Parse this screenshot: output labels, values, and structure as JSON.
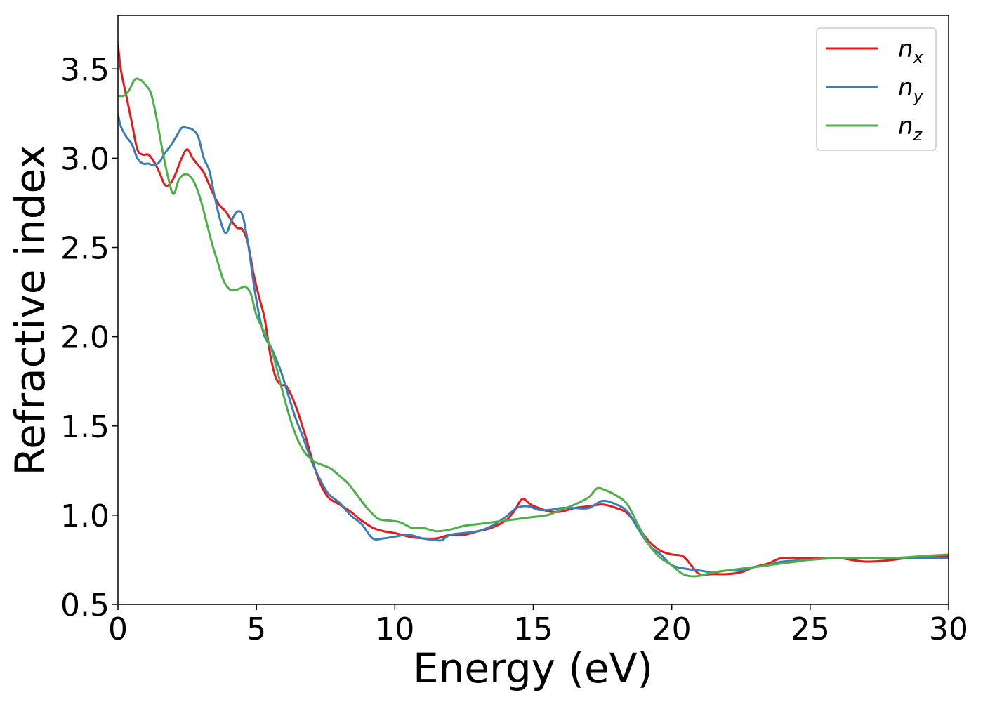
{
  "chart_data": {
    "type": "line",
    "xlabel": "Energy (eV)",
    "ylabel": "Refractive index",
    "xlim": [
      0,
      30
    ],
    "ylim": [
      0.5,
      3.8
    ],
    "xticks": [
      0,
      5,
      10,
      15,
      20,
      25,
      30
    ],
    "yticks": [
      0.5,
      1.0,
      1.5,
      2.0,
      2.5,
      3.0,
      3.5
    ],
    "xtick_labels": [
      "0",
      "5",
      "10",
      "15",
      "20",
      "25",
      "30"
    ],
    "ytick_labels": [
      "0.5",
      "1.0",
      "1.5",
      "2.0",
      "2.5",
      "3.0",
      "3.5"
    ],
    "grid": false,
    "legend_position": "top-right",
    "series": [
      {
        "name": "n_x",
        "legend_base": "n",
        "legend_sub": "x",
        "color": "#e41a1c",
        "x": [
          0,
          0.1,
          0.3,
          0.5,
          0.7,
          0.9,
          1.1,
          1.3,
          1.5,
          1.7,
          1.9,
          2.1,
          2.3,
          2.5,
          2.7,
          2.9,
          3.1,
          3.3,
          3.5,
          3.7,
          3.9,
          4.1,
          4.3,
          4.5,
          4.7,
          4.9,
          5.1,
          5.3,
          5.5,
          5.7,
          5.9,
          6.1,
          6.4,
          6.7,
          7.0,
          7.3,
          7.6,
          8.0,
          8.4,
          8.8,
          9.2,
          9.6,
          10.0,
          10.5,
          11.0,
          11.5,
          12.0,
          12.5,
          13.0,
          13.5,
          14.0,
          14.3,
          14.6,
          14.9,
          15.2,
          15.6,
          16.0,
          16.5,
          17.0,
          17.5,
          18.0,
          18.4,
          18.8,
          19.2,
          19.6,
          20.0,
          20.4,
          20.7,
          21.0,
          21.5,
          22.0,
          22.5,
          23.0,
          23.5,
          24.0,
          25.0,
          26.0,
          27.0,
          28.0,
          29.0,
          30.0
        ],
        "values": [
          3.64,
          3.5,
          3.35,
          3.2,
          3.05,
          3.02,
          3.02,
          2.98,
          2.92,
          2.85,
          2.86,
          2.92,
          3.0,
          3.05,
          3.0,
          2.96,
          2.92,
          2.85,
          2.78,
          2.73,
          2.7,
          2.65,
          2.61,
          2.6,
          2.52,
          2.35,
          2.22,
          2.1,
          1.9,
          1.77,
          1.73,
          1.72,
          1.62,
          1.48,
          1.32,
          1.18,
          1.1,
          1.06,
          1.02,
          0.97,
          0.93,
          0.91,
          0.9,
          0.88,
          0.87,
          0.87,
          0.89,
          0.89,
          0.91,
          0.93,
          0.97,
          1.02,
          1.09,
          1.06,
          1.04,
          1.02,
          1.02,
          1.04,
          1.05,
          1.06,
          1.04,
          1.01,
          0.93,
          0.85,
          0.8,
          0.78,
          0.77,
          0.72,
          0.67,
          0.67,
          0.67,
          0.68,
          0.71,
          0.73,
          0.76,
          0.76,
          0.76,
          0.74,
          0.75,
          0.77,
          0.77
        ]
      },
      {
        "name": "n_y",
        "legend_base": "n",
        "legend_sub": "y",
        "color": "#377eb8",
        "x": [
          0,
          0.1,
          0.3,
          0.5,
          0.7,
          0.9,
          1.1,
          1.3,
          1.5,
          1.7,
          1.9,
          2.1,
          2.3,
          2.5,
          2.7,
          2.9,
          3.1,
          3.3,
          3.5,
          3.7,
          3.9,
          4.1,
          4.3,
          4.5,
          4.7,
          4.9,
          5.1,
          5.3,
          5.5,
          5.7,
          5.9,
          6.1,
          6.4,
          6.7,
          7.0,
          7.3,
          7.6,
          8.0,
          8.4,
          8.8,
          9.2,
          9.6,
          10.0,
          10.5,
          11.0,
          11.5,
          11.7,
          12.0,
          12.5,
          13.0,
          13.5,
          14.0,
          14.4,
          14.8,
          15.2,
          15.6,
          16.0,
          16.5,
          17.0,
          17.5,
          18.0,
          18.4,
          18.8,
          19.2,
          19.6,
          20.0,
          20.5,
          21.0,
          21.5,
          22.0,
          22.5,
          23.0,
          23.5,
          24.0,
          25.0,
          26.0,
          27.0,
          28.0,
          29.0,
          30.0
        ],
        "values": [
          3.25,
          3.18,
          3.12,
          3.08,
          3.0,
          2.97,
          2.97,
          2.96,
          2.98,
          3.03,
          3.07,
          3.12,
          3.17,
          3.17,
          3.16,
          3.12,
          3.0,
          2.93,
          2.78,
          2.65,
          2.58,
          2.65,
          2.7,
          2.68,
          2.52,
          2.3,
          2.12,
          2.0,
          1.95,
          1.88,
          1.8,
          1.7,
          1.55,
          1.43,
          1.3,
          1.2,
          1.12,
          1.07,
          1.0,
          0.95,
          0.87,
          0.87,
          0.88,
          0.89,
          0.87,
          0.86,
          0.86,
          0.89,
          0.9,
          0.91,
          0.94,
          0.99,
          1.04,
          1.05,
          1.03,
          1.03,
          1.04,
          1.04,
          1.04,
          1.08,
          1.06,
          1.02,
          0.92,
          0.83,
          0.78,
          0.72,
          0.7,
          0.69,
          0.68,
          0.69,
          0.69,
          0.71,
          0.72,
          0.74,
          0.75,
          0.76,
          0.76,
          0.76,
          0.76,
          0.76
        ]
      },
      {
        "name": "n_z",
        "legend_base": "n",
        "legend_sub": "z",
        "color": "#4daf4a",
        "x": [
          0,
          0.2,
          0.4,
          0.6,
          0.8,
          1.0,
          1.2,
          1.4,
          1.6,
          1.8,
          2.0,
          2.2,
          2.4,
          2.6,
          2.8,
          3.0,
          3.2,
          3.4,
          3.6,
          3.8,
          4.0,
          4.2,
          4.4,
          4.6,
          4.8,
          5.0,
          5.3,
          5.6,
          5.9,
          6.2,
          6.5,
          6.8,
          7.1,
          7.4,
          7.7,
          8.0,
          8.3,
          8.6,
          9.0,
          9.4,
          9.8,
          10.2,
          10.6,
          11.0,
          11.5,
          12.0,
          12.5,
          13.0,
          13.5,
          14.0,
          14.5,
          15.0,
          15.5,
          16.0,
          16.5,
          17.0,
          17.3,
          17.6,
          18.0,
          18.4,
          18.8,
          19.2,
          19.6,
          20.0,
          20.3,
          20.6,
          21.0,
          21.5,
          22.0,
          22.5,
          23.0,
          23.5,
          24.0,
          24.5,
          25.0,
          26.0,
          27.0,
          28.0,
          29.0,
          30.0
        ],
        "values": [
          3.35,
          3.35,
          3.38,
          3.44,
          3.44,
          3.41,
          3.36,
          3.22,
          3.05,
          2.9,
          2.8,
          2.88,
          2.91,
          2.9,
          2.85,
          2.76,
          2.64,
          2.52,
          2.42,
          2.32,
          2.27,
          2.26,
          2.27,
          2.28,
          2.24,
          2.12,
          2.02,
          1.9,
          1.72,
          1.55,
          1.42,
          1.34,
          1.3,
          1.28,
          1.26,
          1.22,
          1.18,
          1.12,
          1.04,
          0.98,
          0.97,
          0.96,
          0.93,
          0.93,
          0.91,
          0.92,
          0.94,
          0.95,
          0.96,
          0.97,
          0.98,
          0.99,
          1.0,
          1.03,
          1.06,
          1.1,
          1.15,
          1.14,
          1.11,
          1.06,
          0.94,
          0.83,
          0.76,
          0.72,
          0.68,
          0.66,
          0.66,
          0.68,
          0.69,
          0.7,
          0.71,
          0.72,
          0.73,
          0.74,
          0.75,
          0.76,
          0.76,
          0.76,
          0.77,
          0.78
        ]
      }
    ]
  }
}
